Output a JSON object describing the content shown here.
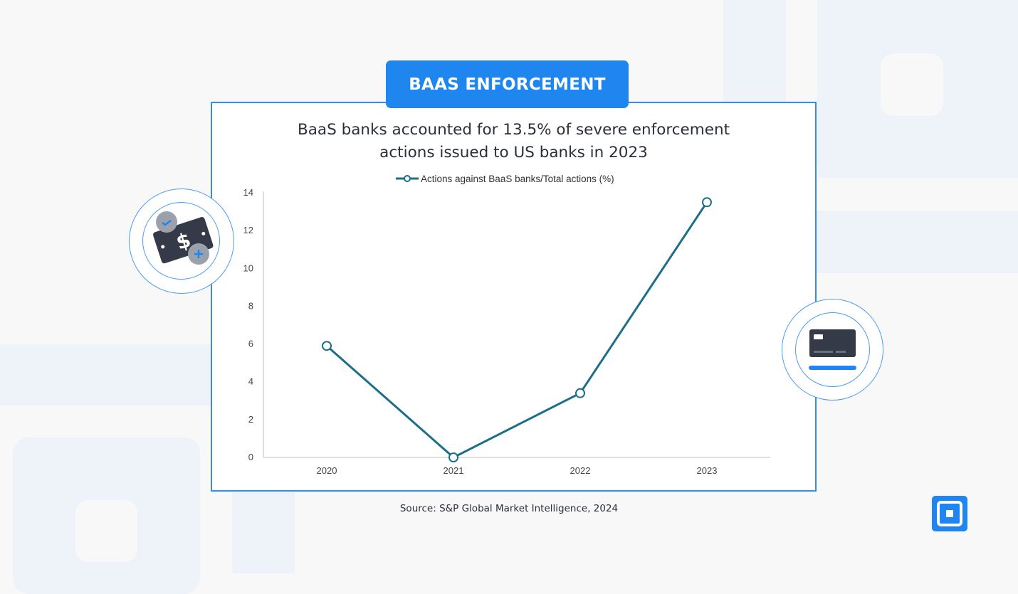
{
  "header": {
    "tag_label": "BAAS ENFORCEMENT"
  },
  "chart_title_lines": [
    "BaaS banks accounted for 13.5% of severe enforcement",
    "actions issued to US banks in 2023"
  ],
  "source": "Source: S&P Global Market Intelligence, 2024",
  "icons": {
    "left": "money-bill-icon",
    "right": "credit-card-icon",
    "corner": "square-logo-icon"
  },
  "colors": {
    "accent": "#1f86f0",
    "line": "#1b6f86",
    "card_border": "#2d8ef0"
  },
  "chart_data": {
    "type": "line",
    "title": "BaaS banks accounted for 13.5% of severe enforcement actions issued to US banks in 2023",
    "categories": [
      "2020",
      "2021",
      "2022",
      "2023"
    ],
    "series": [
      {
        "name": "Actions against BaaS banks/Total actions (%)",
        "values": [
          5.9,
          0.0,
          3.4,
          13.5
        ]
      }
    ],
    "ylim": [
      0,
      14
    ],
    "yticks": [
      0,
      2,
      4,
      6,
      8,
      10,
      12,
      14
    ],
    "xlabel": "",
    "ylabel": "",
    "legend": "top-center",
    "grid": false
  }
}
